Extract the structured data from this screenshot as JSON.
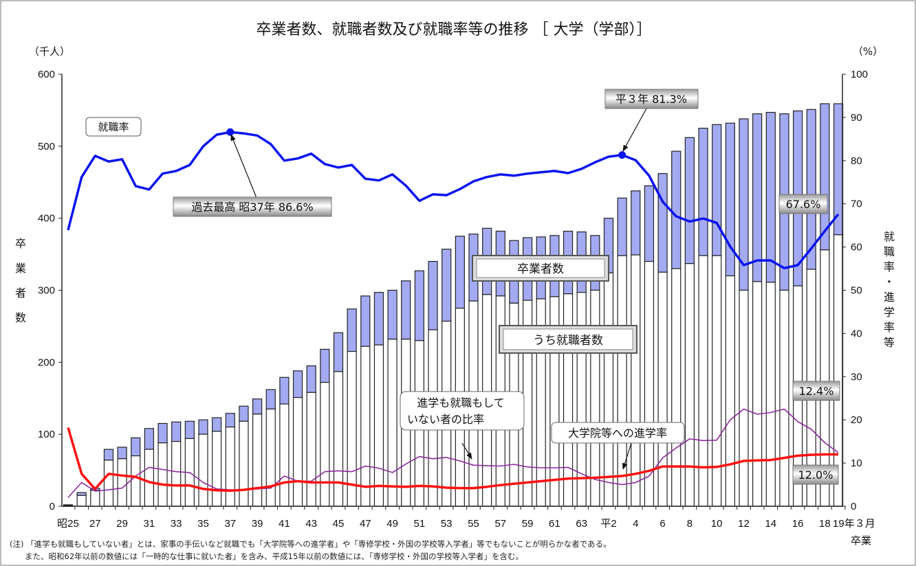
{
  "chart_data": {
    "type": "bar+line",
    "title": "卒業者数、就職者数及び就職率等の推移 ［ 大学（学部）］",
    "left_unit": "（千人）",
    "right_unit": "（%）",
    "left_axis_title": [
      "卒",
      "業",
      "者",
      "数"
    ],
    "right_axis_title": [
      "就",
      "職",
      "率",
      "・",
      "進",
      "学",
      "率",
      "等"
    ],
    "ylim_left": [
      0,
      600
    ],
    "ylim_right": [
      0,
      100
    ],
    "left_ticks": [
      "0",
      "100",
      "200",
      "300",
      "400",
      "500",
      "600"
    ],
    "right_ticks": [
      "0",
      "10",
      "20",
      "30",
      "40",
      "50",
      "60",
      "70",
      "80",
      "90",
      "100"
    ],
    "x_tick_labels": [
      "昭25",
      "27",
      "29",
      "31",
      "33",
      "35",
      "37",
      "39",
      "41",
      "43",
      "45",
      "47",
      "49",
      "51",
      "53",
      "55",
      "57",
      "59",
      "61",
      "63",
      "平2",
      "4",
      "6",
      "8",
      "10",
      "12",
      "14",
      "16",
      "18",
      "19年３月"
    ],
    "x_suffix": "卒業",
    "years": [
      1950,
      1951,
      1952,
      1953,
      1954,
      1955,
      1956,
      1957,
      1958,
      1959,
      1960,
      1961,
      1962,
      1963,
      1964,
      1965,
      1966,
      1967,
      1968,
      1969,
      1970,
      1971,
      1972,
      1973,
      1974,
      1975,
      1976,
      1977,
      1978,
      1979,
      1980,
      1981,
      1982,
      1983,
      1984,
      1985,
      1986,
      1987,
      1988,
      1989,
      1990,
      1991,
      1992,
      1993,
      1994,
      1995,
      1996,
      1997,
      1998,
      1999,
      2000,
      2001,
      2002,
      2003,
      2004,
      2005,
      2006,
      2007
    ],
    "graduates": [
      2,
      19,
      25,
      79,
      82,
      95,
      108,
      115,
      117,
      118,
      120,
      123,
      129,
      139,
      149,
      162,
      179,
      188,
      195,
      218,
      241,
      274,
      292,
      297,
      300,
      313,
      327,
      340,
      357,
      375,
      378,
      386,
      382,
      369,
      373,
      374,
      376,
      382,
      381,
      376,
      400,
      428,
      438,
      445,
      462,
      493,
      512,
      525,
      530,
      532,
      538,
      545,
      547,
      545,
      549,
      551,
      559,
      559
    ],
    "employed": [
      1,
      15,
      22,
      64,
      66,
      70,
      79,
      88,
      90,
      94,
      100,
      104,
      110,
      118,
      128,
      135,
      142,
      151,
      158,
      172,
      187,
      215,
      222,
      224,
      232,
      232,
      230,
      245,
      257,
      275,
      285,
      294,
      292,
      282,
      286,
      288,
      291,
      295,
      297,
      300,
      324,
      348,
      349,
      340,
      325,
      330,
      337,
      348,
      348,
      320,
      300,
      312,
      311,
      300,
      306,
      329,
      356,
      377
    ],
    "employment_rate": [
      63.9,
      76.2,
      81.1,
      79.8,
      80.3,
      74.1,
      73.3,
      77.0,
      77.6,
      79.0,
      83.3,
      86.0,
      86.6,
      86.3,
      85.8,
      83.8,
      80.0,
      80.5,
      81.6,
      79.2,
      78.4,
      79.0,
      75.8,
      75.4,
      76.8,
      74.2,
      70.7,
      72.2,
      72.0,
      73.4,
      75.2,
      76.2,
      76.8,
      76.5,
      77.0,
      77.3,
      77.6,
      77.1,
      78.1,
      79.6,
      80.9,
      81.3,
      80.1,
      76.5,
      70.5,
      67.1,
      65.9,
      66.6,
      65.6,
      60.1,
      55.8,
      56.9,
      56.9,
      55.1,
      55.8,
      59.7,
      63.7,
      67.6
    ],
    "grad_school_rate": [
      18.2,
      7.5,
      4.0,
      7.5,
      7.1,
      6.8,
      5.6,
      5.0,
      4.8,
      4.8,
      4.0,
      3.7,
      3.6,
      3.8,
      4.2,
      4.6,
      5.5,
      5.8,
      5.5,
      5.5,
      5.5,
      5.0,
      4.5,
      4.7,
      4.6,
      4.5,
      4.7,
      4.6,
      4.3,
      4.2,
      4.2,
      4.5,
      4.9,
      5.2,
      5.5,
      5.8,
      6.1,
      6.4,
      6.5,
      6.6,
      6.8,
      7.0,
      7.5,
      8.2,
      9.2,
      9.2,
      9.2,
      9.0,
      9.1,
      9.7,
      10.5,
      10.6,
      10.7,
      11.2,
      11.7,
      11.9,
      12.0,
      12.0
    ],
    "neither_rate": [
      2.0,
      5.5,
      3.5,
      3.8,
      4.2,
      7.0,
      9.0,
      8.5,
      8.0,
      7.8,
      5.5,
      4.0,
      3.8,
      3.8,
      4.0,
      4.2,
      7.0,
      5.8,
      5.8,
      8.0,
      8.2,
      8.0,
      9.3,
      8.8,
      7.8,
      9.8,
      11.5,
      11.0,
      11.3,
      10.5,
      9.5,
      9.4,
      9.3,
      9.7,
      9.1,
      8.9,
      8.9,
      9.0,
      7.5,
      6.2,
      5.5,
      5.0,
      5.5,
      7.0,
      11.2,
      13.5,
      15.6,
      15.2,
      15.3,
      20.0,
      22.5,
      21.3,
      21.7,
      22.5,
      19.6,
      17.8,
      14.7,
      12.4
    ],
    "colors": {
      "employment_rate": "#0a14f0",
      "grad_school_rate": "#ff1010",
      "neither_rate": "#8a2a9a",
      "bar_fill": "#a3aaf2",
      "bar_outline": "#222222"
    },
    "grid": false
  },
  "annotations": {
    "employment_rate_label": "就職率",
    "peak": "過去最高 昭37年 86.6%",
    "h3": "平３年 81.3%",
    "last_employment": "67.6%",
    "graduates_label": "卒業者数",
    "employed_label": "うち就職者数",
    "neither_label_1": "進学も就職もして",
    "neither_label_2": "いない者の比率",
    "grad_label": "大学院等への進学率",
    "last_neither": "12.4%",
    "last_grad": "12.0%"
  },
  "notes": [
    "(注) 「進学も就職もしていない者」とは、家事の手伝いなど就職でも「大学院等への進学者」や「専修学校・外国の学校等入学者」等でもないことが明らかな者である。",
    "また、昭和62年以前の数値には「一時的な仕事に就いた者」を含み、平成15年以前の数値には、「専修学校・外国の学校等入学者」を含む。"
  ]
}
